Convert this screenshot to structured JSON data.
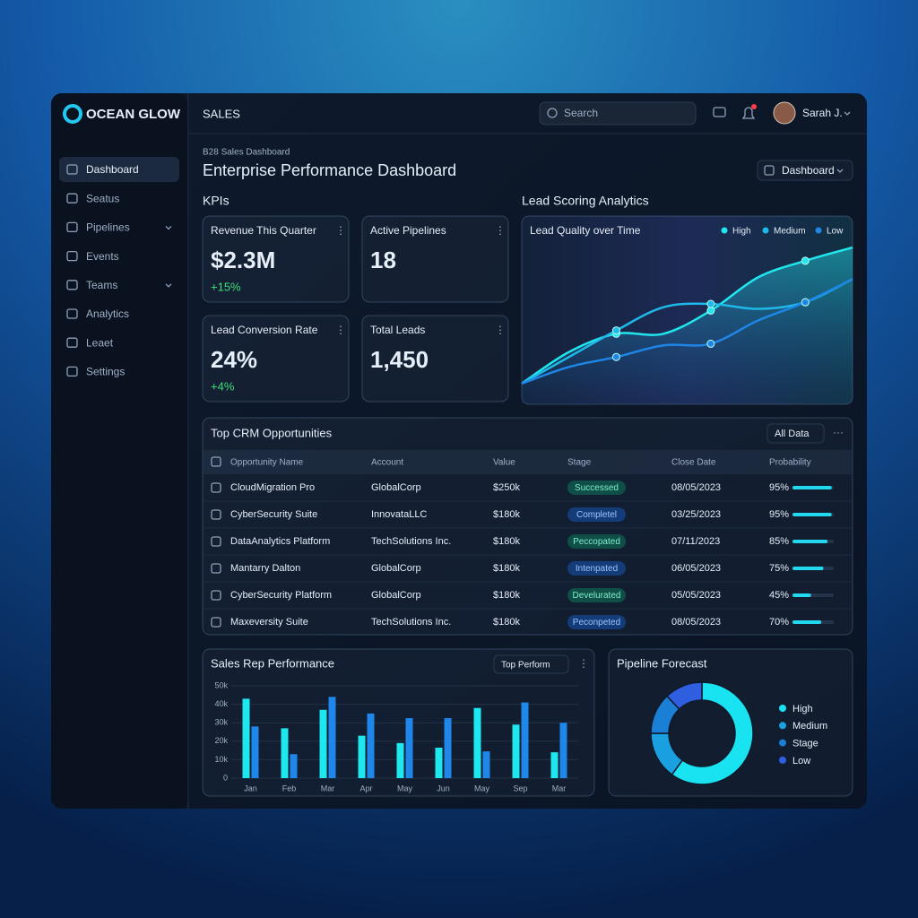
{
  "app": {
    "brand": "OCEAN GLOW",
    "section": "SALES",
    "search": "Search",
    "user": "Sarah J."
  },
  "sidebar": {
    "items": [
      "Dashboard",
      "Seatus",
      "Pipelines",
      "Events",
      "Teams",
      "Analytics",
      "Leaet",
      "Settings"
    ]
  },
  "header": {
    "breadcrumb": "B28 Sales Dashboard",
    "title": "Enterprise Performance Dashboard",
    "view": "Dashboard"
  },
  "kpis": {
    "title": "KPIs",
    "cards": [
      {
        "label": "Revenue This Quarter",
        "value": "$2.3M",
        "delta": "+15%"
      },
      {
        "label": "Active Pipelines",
        "value": "18"
      },
      {
        "label": "Lead Conversion Rate",
        "value": "24%",
        "delta": "+4%"
      },
      {
        "label": "Total Leads",
        "value": "1,450"
      }
    ]
  },
  "lead_scoring": {
    "title": "Lead Scoring Analytics",
    "chart": {
      "type": "line",
      "title": "Lead Quality over Time",
      "ylim": [
        0,
        100
      ],
      "series": [
        {
          "name": "High",
          "color": "#22e6ee",
          "values": [
            12,
            31,
            42,
            42,
            56,
            76,
            86,
            94
          ]
        },
        {
          "name": "Medium",
          "color": "#1fb8e8",
          "values": [
            12,
            28,
            44,
            58,
            60,
            57,
            61,
            75
          ]
        },
        {
          "name": "Low",
          "color": "#1f86e6",
          "values": [
            12,
            22,
            28,
            35,
            36,
            50,
            61,
            75
          ]
        }
      ]
    }
  },
  "opportunities": {
    "title": "Top CRM Opportunities",
    "filter": "All Data",
    "columns": [
      "Opportunity Name",
      "Account",
      "Value",
      "Stage",
      "Close Date",
      "Probability"
    ],
    "rows": [
      {
        "name": "CloudMigration Pro",
        "account": "GlobalCorp",
        "value": "$250k",
        "stage": "Successed",
        "stage_color": "green",
        "close_date": "08/05/2023",
        "probability": {
          "value": 95,
          "label": "95%"
        }
      },
      {
        "name": "CyberSecurity Suite",
        "account": "InnovataLLC",
        "value": "$180k",
        "stage": "Completel",
        "stage_color": "blue",
        "close_date": "03/25/2023",
        "probability": {
          "value": 95,
          "label": "95%"
        }
      },
      {
        "name": "DataAnalytics Platform",
        "account": "TechSolutions Inc.",
        "value": "$180k",
        "stage": "Peccopated",
        "stage_color": "green",
        "close_date": "07/11/2023",
        "probability": {
          "value": 85,
          "label": "85%"
        }
      },
      {
        "name": "Mantarry Dalton",
        "account": "GlobalCorp",
        "value": "$180k",
        "stage": "Intenpated",
        "stage_color": "blue",
        "close_date": "06/05/2023",
        "probability": {
          "value": 75,
          "label": "75%"
        }
      },
      {
        "name": "CyberSecurity Platform",
        "account": "GlobalCorp",
        "value": "$180k",
        "stage": "Develurated",
        "stage_color": "green",
        "close_date": "05/05/2023",
        "probability": {
          "value": 45,
          "label": "45%"
        }
      },
      {
        "name": "Maxeversity Suite",
        "account": "TechSolutions Inc.",
        "value": "$180k",
        "stage": "Peconpeted",
        "stage_color": "blue",
        "close_date": "08/05/2023",
        "probability": {
          "value": 70,
          "label": "70%"
        }
      }
    ]
  },
  "sales_rep": {
    "type": "bar",
    "title": "Sales Rep Performance",
    "filter": "Top Perform",
    "categories": [
      "Jan",
      "Feb",
      "Mar",
      "Apr",
      "May",
      "Jun",
      "May",
      "Sep",
      "Mar"
    ],
    "ylim": [
      0,
      50000
    ],
    "yticks": [
      0,
      {
        "value": 10000,
        "label": "10k"
      },
      {
        "value": 20000,
        "label": "20k"
      },
      {
        "value": 30000,
        "label": "30k"
      },
      {
        "value": 40000,
        "label": "40k"
      },
      {
        "value": 50000,
        "label": "50k"
      }
    ],
    "series": [
      {
        "color": "#1de8f0",
        "values": [
          43000,
          27000,
          37000,
          23000,
          19000,
          16500,
          38000,
          29000,
          14000
        ]
      },
      {
        "color": "#1f86ea",
        "values": [
          28000,
          13000,
          44000,
          35000,
          32500,
          32500,
          14500,
          41000,
          30000
        ]
      }
    ]
  },
  "pipeline_forecast": {
    "type": "pie",
    "title": "Pipeline Forecast",
    "categories": [
      "High",
      "Medium",
      "Stage",
      "Low"
    ],
    "values": [
      60,
      15,
      13,
      12
    ],
    "colors": [
      "#19e3f0",
      "#1aa0e0",
      "#1c7fd6",
      "#2f5ee0"
    ]
  }
}
